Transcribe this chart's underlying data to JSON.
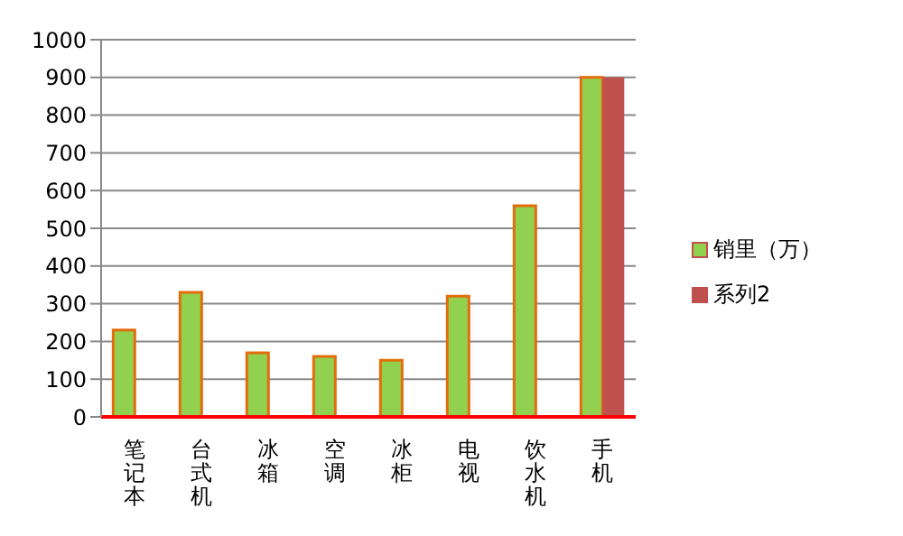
{
  "chart_data": {
    "type": "bar",
    "categories": [
      "笔记本",
      "台式机",
      "冰箱",
      "空调",
      "冰柜",
      "电视",
      "饮水机",
      "手机"
    ],
    "series": [
      {
        "name": "销里（万）",
        "color": "#92d050",
        "values": [
          230,
          330,
          170,
          160,
          150,
          320,
          560,
          900
        ]
      },
      {
        "name": "系列2",
        "color": "#c0504d",
        "values": [
          null,
          null,
          null,
          null,
          null,
          null,
          null,
          900
        ]
      }
    ],
    "ylim": [
      0,
      1000
    ],
    "yticks": [
      0,
      100,
      200,
      300,
      400,
      500,
      600,
      700,
      800,
      900,
      1000
    ],
    "grid": "y",
    "legend": "right"
  }
}
